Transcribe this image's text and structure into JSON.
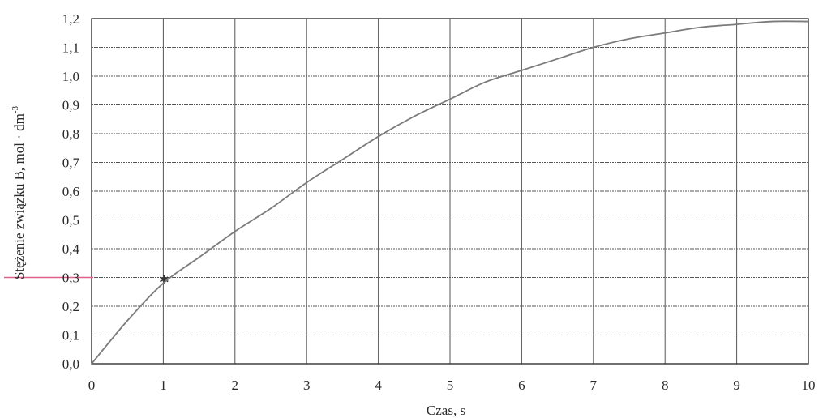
{
  "chart_data": {
    "type": "line",
    "title": "",
    "xlabel": "Czas, s",
    "ylabel_main": "Stężenie związku B, mol · dm",
    "ylabel_sup": "-3",
    "xlim": [
      0,
      10
    ],
    "ylim": [
      0,
      1.2
    ],
    "x_ticks": [
      "0",
      "1",
      "2",
      "3",
      "4",
      "5",
      "6",
      "7",
      "8",
      "9",
      "10"
    ],
    "y_ticks": [
      "0,0",
      "0,1",
      "0,2",
      "0,3",
      "0,4",
      "0,5",
      "0,6",
      "0,7",
      "0,8",
      "0,9",
      "1,0",
      "1,1",
      "1,2"
    ],
    "grid": true,
    "legend": "none",
    "series": [
      {
        "x": [
          0,
          0.5,
          1,
          1.5,
          2,
          2.5,
          3,
          3.5,
          4,
          4.5,
          5,
          5.5,
          6,
          6.5,
          7,
          7.5,
          8,
          8.5,
          9,
          9.5,
          10
        ],
        "y": [
          0.0,
          0.15,
          0.28,
          0.37,
          0.46,
          0.54,
          0.63,
          0.71,
          0.79,
          0.86,
          0.92,
          0.98,
          1.02,
          1.06,
          1.1,
          1.13,
          1.15,
          1.17,
          1.18,
          1.19,
          1.19
        ]
      }
    ],
    "annotations": [
      {
        "type": "horizontal-line",
        "y": 0.3,
        "color": "#e0608a"
      },
      {
        "type": "marker",
        "x": 1,
        "y": 0.29,
        "glyph": "*"
      }
    ],
    "colors": {
      "curve": "#7b7b7b",
      "grid": "#555555",
      "frame": "#222222",
      "reference": "#e0608a"
    }
  }
}
